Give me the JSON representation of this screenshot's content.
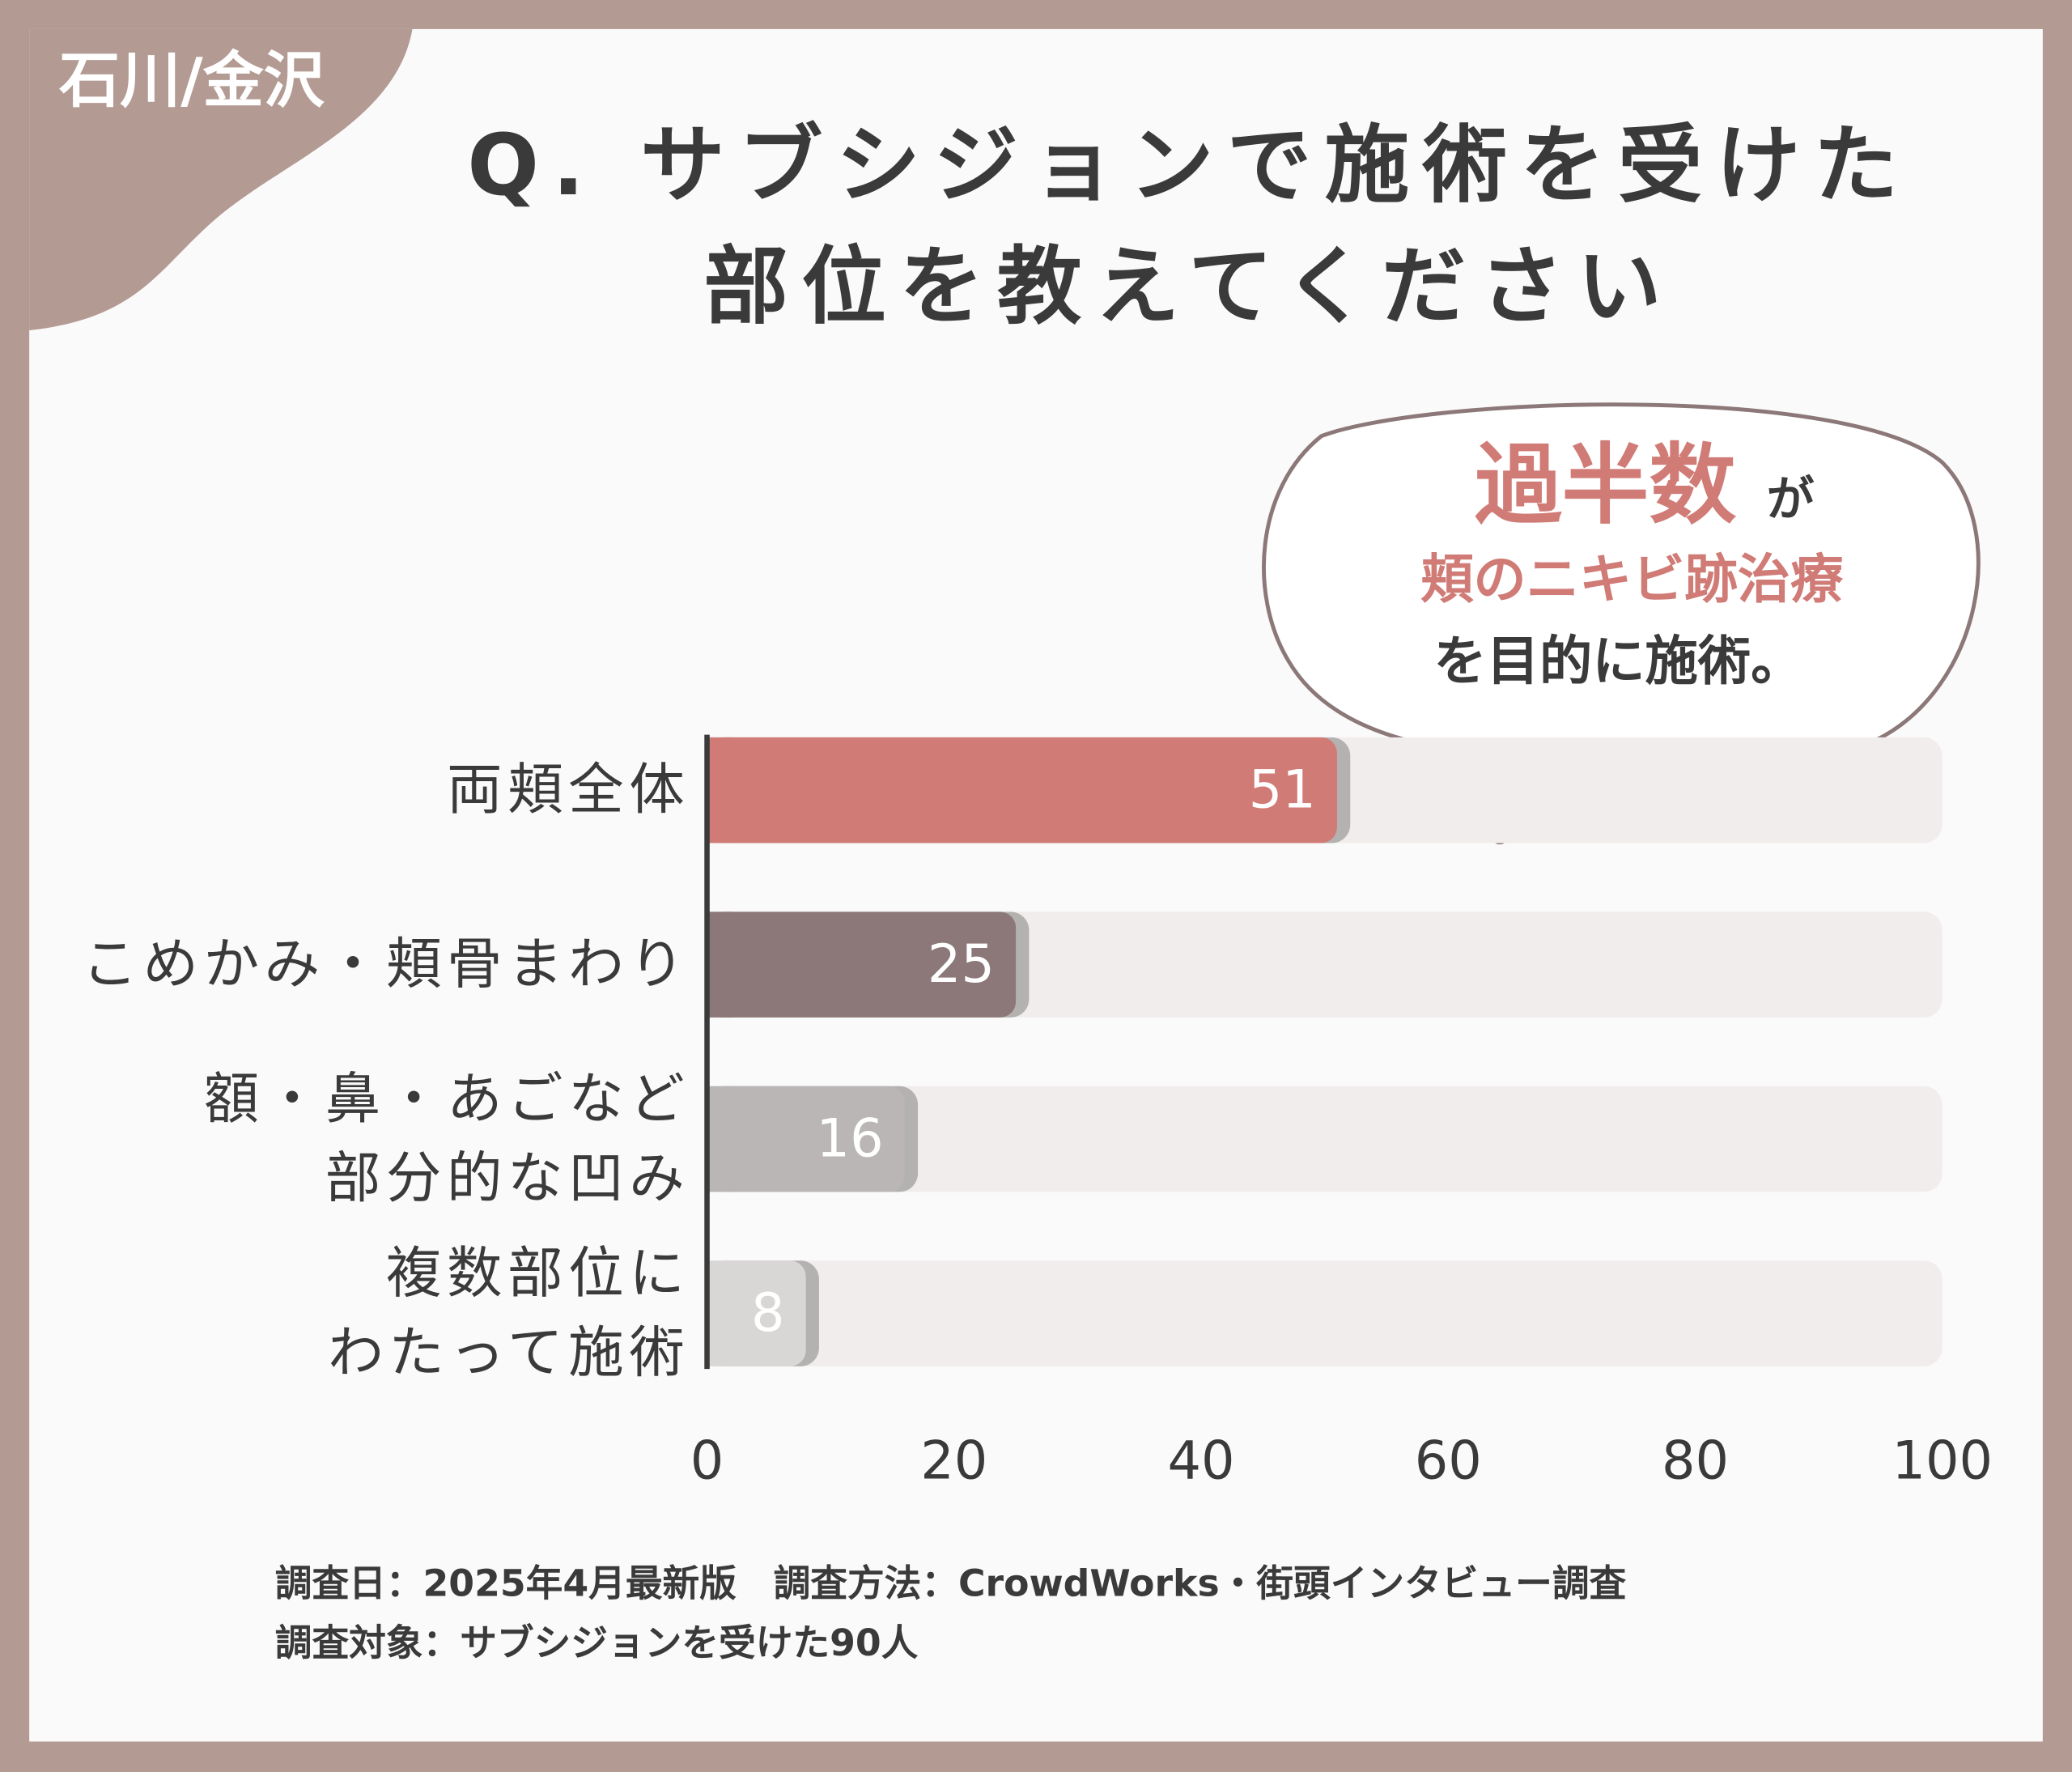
{
  "badge": "石川/金沢",
  "chart_data": {
    "type": "bar",
    "orientation": "horizontal",
    "title": "Q. サブシジョンで施術を受けた\n部位を教えてください",
    "categories": [
      "両頬全体",
      "こめかみ・頬骨まわり",
      "額・鼻・あごなど\n部分的な凹み",
      "複数部位に\nわたって施術"
    ],
    "values": [
      51,
      25,
      16,
      8
    ],
    "colors": [
      "#d07b76",
      "#8c7878",
      "#b9b6b5",
      "#d9d6d6"
    ],
    "xlim": [
      0,
      100
    ],
    "xticks": [
      0,
      20,
      40,
      60,
      80,
      100
    ],
    "grid": false
  },
  "callout": {
    "highlight": "過半数",
    "particle": "が",
    "line2": "頬のニキビ跡治療",
    "line3": "を目的に施術。"
  },
  "footer": [
    "調査日：2025年4月最新版　調査方法：CrowdWorks・街頭インタビュー調査",
    "調査対象：サブシジョンを受けた90人"
  ]
}
